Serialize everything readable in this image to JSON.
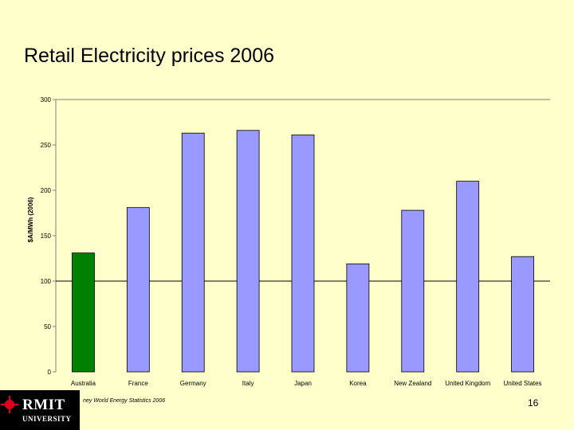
{
  "slide": {
    "title": "Retail Electricity prices 2006",
    "source_note": "ney World Energy Statistics 2006",
    "page_number": "16",
    "logo_name": "RMIT",
    "logo_sub": "UNIVERSITY"
  },
  "colors": {
    "background": "#ffffcc",
    "bar_default": "#9999ff",
    "bar_highlight": "#008000",
    "reference_line": "#000000"
  },
  "chart_data": {
    "type": "bar",
    "title": "",
    "xlabel": "",
    "ylabel": "$A/MWh (2006)",
    "ylim": [
      0,
      300
    ],
    "yticks": [
      0,
      50,
      100,
      150,
      200,
      250,
      300
    ],
    "reference_line": 100,
    "grid": false,
    "categories": [
      "Australia",
      "France",
      "Germany",
      "Italy",
      "Japan",
      "Korea",
      "New Zealand",
      "United Kingdom",
      "United States"
    ],
    "values": [
      131,
      181,
      263,
      266,
      261,
      119,
      178,
      210,
      127
    ],
    "highlight_category": "Australia"
  }
}
